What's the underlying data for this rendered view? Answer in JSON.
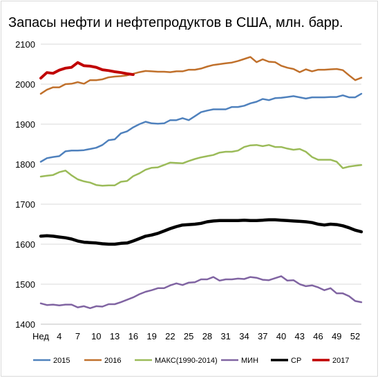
{
  "chart_data": {
    "type": "line",
    "title": "Запасы нефти и нефтепродуктов в США, млн. барр.",
    "xlabel": "",
    "ylabel": "",
    "ylim": [
      1400,
      2100
    ],
    "yticks": [
      1400,
      1500,
      1600,
      1700,
      1800,
      1900,
      2000,
      2100
    ],
    "xlim": [
      1,
      53
    ],
    "xticks": [
      {
        "x": 1,
        "label": "Нед"
      },
      {
        "x": 4,
        "label": "4"
      },
      {
        "x": 7,
        "label": "7"
      },
      {
        "x": 10,
        "label": "10"
      },
      {
        "x": 13,
        "label": "13"
      },
      {
        "x": 16,
        "label": "16"
      },
      {
        "x": 19,
        "label": "19"
      },
      {
        "x": 22,
        "label": "22"
      },
      {
        "x": 25,
        "label": "25"
      },
      {
        "x": 28,
        "label": "28"
      },
      {
        "x": 31,
        "label": "31"
      },
      {
        "x": 34,
        "label": "34"
      },
      {
        "x": 37,
        "label": "37"
      },
      {
        "x": 40,
        "label": "40"
      },
      {
        "x": 43,
        "label": "43"
      },
      {
        "x": 46,
        "label": "46"
      },
      {
        "x": 49,
        "label": "49"
      },
      {
        "x": 52,
        "label": "52"
      }
    ],
    "grid": true,
    "legend_position": "bottom",
    "series": [
      {
        "name": "2015",
        "color": "#4f81bd",
        "width": 2.5,
        "values": [
          1806,
          1815,
          1818,
          1820,
          1832,
          1834,
          1834,
          1835,
          1838,
          1841,
          1848,
          1860,
          1862,
          1877,
          1882,
          1892,
          1900,
          1906,
          1902,
          1901,
          1902,
          1910,
          1910,
          1915,
          1910,
          1920,
          1930,
          1934,
          1937,
          1937,
          1937,
          1943,
          1943,
          1946,
          1952,
          1956,
          1963,
          1960,
          1965,
          1966,
          1968,
          1970,
          1967,
          1964,
          1967,
          1967,
          1967,
          1968,
          1968,
          1972,
          1967,
          1967,
          1976
        ]
      },
      {
        "name": "2016",
        "color": "#c0702b",
        "width": 2.5,
        "values": [
          1976,
          1986,
          1992,
          1992,
          2000,
          2001,
          2005,
          2001,
          2010,
          2010,
          2012,
          2017,
          2019,
          2020,
          2022,
          2026,
          2030,
          2033,
          2032,
          2031,
          2031,
          2030,
          2032,
          2032,
          2036,
          2036,
          2039,
          2044,
          2048,
          2050,
          2052,
          2054,
          2058,
          2063,
          2068,
          2055,
          2062,
          2056,
          2055,
          2046,
          2041,
          2038,
          2030,
          2037,
          2032,
          2036,
          2036,
          2037,
          2038,
          2035,
          2022,
          2010,
          2016
        ]
      },
      {
        "name": "МАКС(1990-2014)",
        "color": "#9bbb59",
        "width": 2.5,
        "values": [
          1769,
          1771,
          1773,
          1780,
          1784,
          1772,
          1762,
          1757,
          1754,
          1748,
          1746,
          1747,
          1747,
          1756,
          1758,
          1770,
          1777,
          1786,
          1791,
          1792,
          1798,
          1804,
          1803,
          1802,
          1808,
          1813,
          1817,
          1820,
          1823,
          1829,
          1831,
          1831,
          1834,
          1843,
          1847,
          1848,
          1845,
          1848,
          1843,
          1843,
          1839,
          1836,
          1838,
          1831,
          1818,
          1811,
          1811,
          1811,
          1806,
          1790,
          1794,
          1796,
          1798
        ]
      },
      {
        "name": "МИН",
        "color": "#8064a2",
        "width": 2.5,
        "values": [
          1452,
          1448,
          1449,
          1447,
          1449,
          1449,
          1442,
          1445,
          1440,
          1445,
          1444,
          1450,
          1450,
          1455,
          1461,
          1467,
          1475,
          1481,
          1485,
          1490,
          1490,
          1497,
          1502,
          1498,
          1504,
          1505,
          1512,
          1512,
          1518,
          1509,
          1512,
          1512,
          1514,
          1513,
          1518,
          1516,
          1511,
          1510,
          1515,
          1520,
          1509,
          1510,
          1500,
          1495,
          1497,
          1492,
          1485,
          1490,
          1477,
          1477,
          1470,
          1458,
          1455
        ]
      },
      {
        "name": "СР",
        "color": "#000000",
        "width": 4.5,
        "values": [
          1620,
          1621,
          1620,
          1618,
          1616,
          1613,
          1608,
          1605,
          1604,
          1603,
          1601,
          1600,
          1600,
          1602,
          1603,
          1608,
          1614,
          1620,
          1623,
          1627,
          1633,
          1639,
          1644,
          1648,
          1649,
          1650,
          1652,
          1656,
          1658,
          1659,
          1659,
          1659,
          1659,
          1660,
          1659,
          1659,
          1660,
          1661,
          1661,
          1660,
          1659,
          1658,
          1657,
          1656,
          1654,
          1650,
          1648,
          1650,
          1649,
          1646,
          1641,
          1635,
          1631
        ]
      },
      {
        "name": "2017",
        "color": "#c00000",
        "width": 4,
        "values": [
          2015,
          2029,
          2027,
          2035,
          2040,
          2042,
          2054,
          2046,
          2045,
          2042,
          2036,
          2034,
          2031,
          2029,
          2026,
          2024
        ]
      }
    ]
  }
}
